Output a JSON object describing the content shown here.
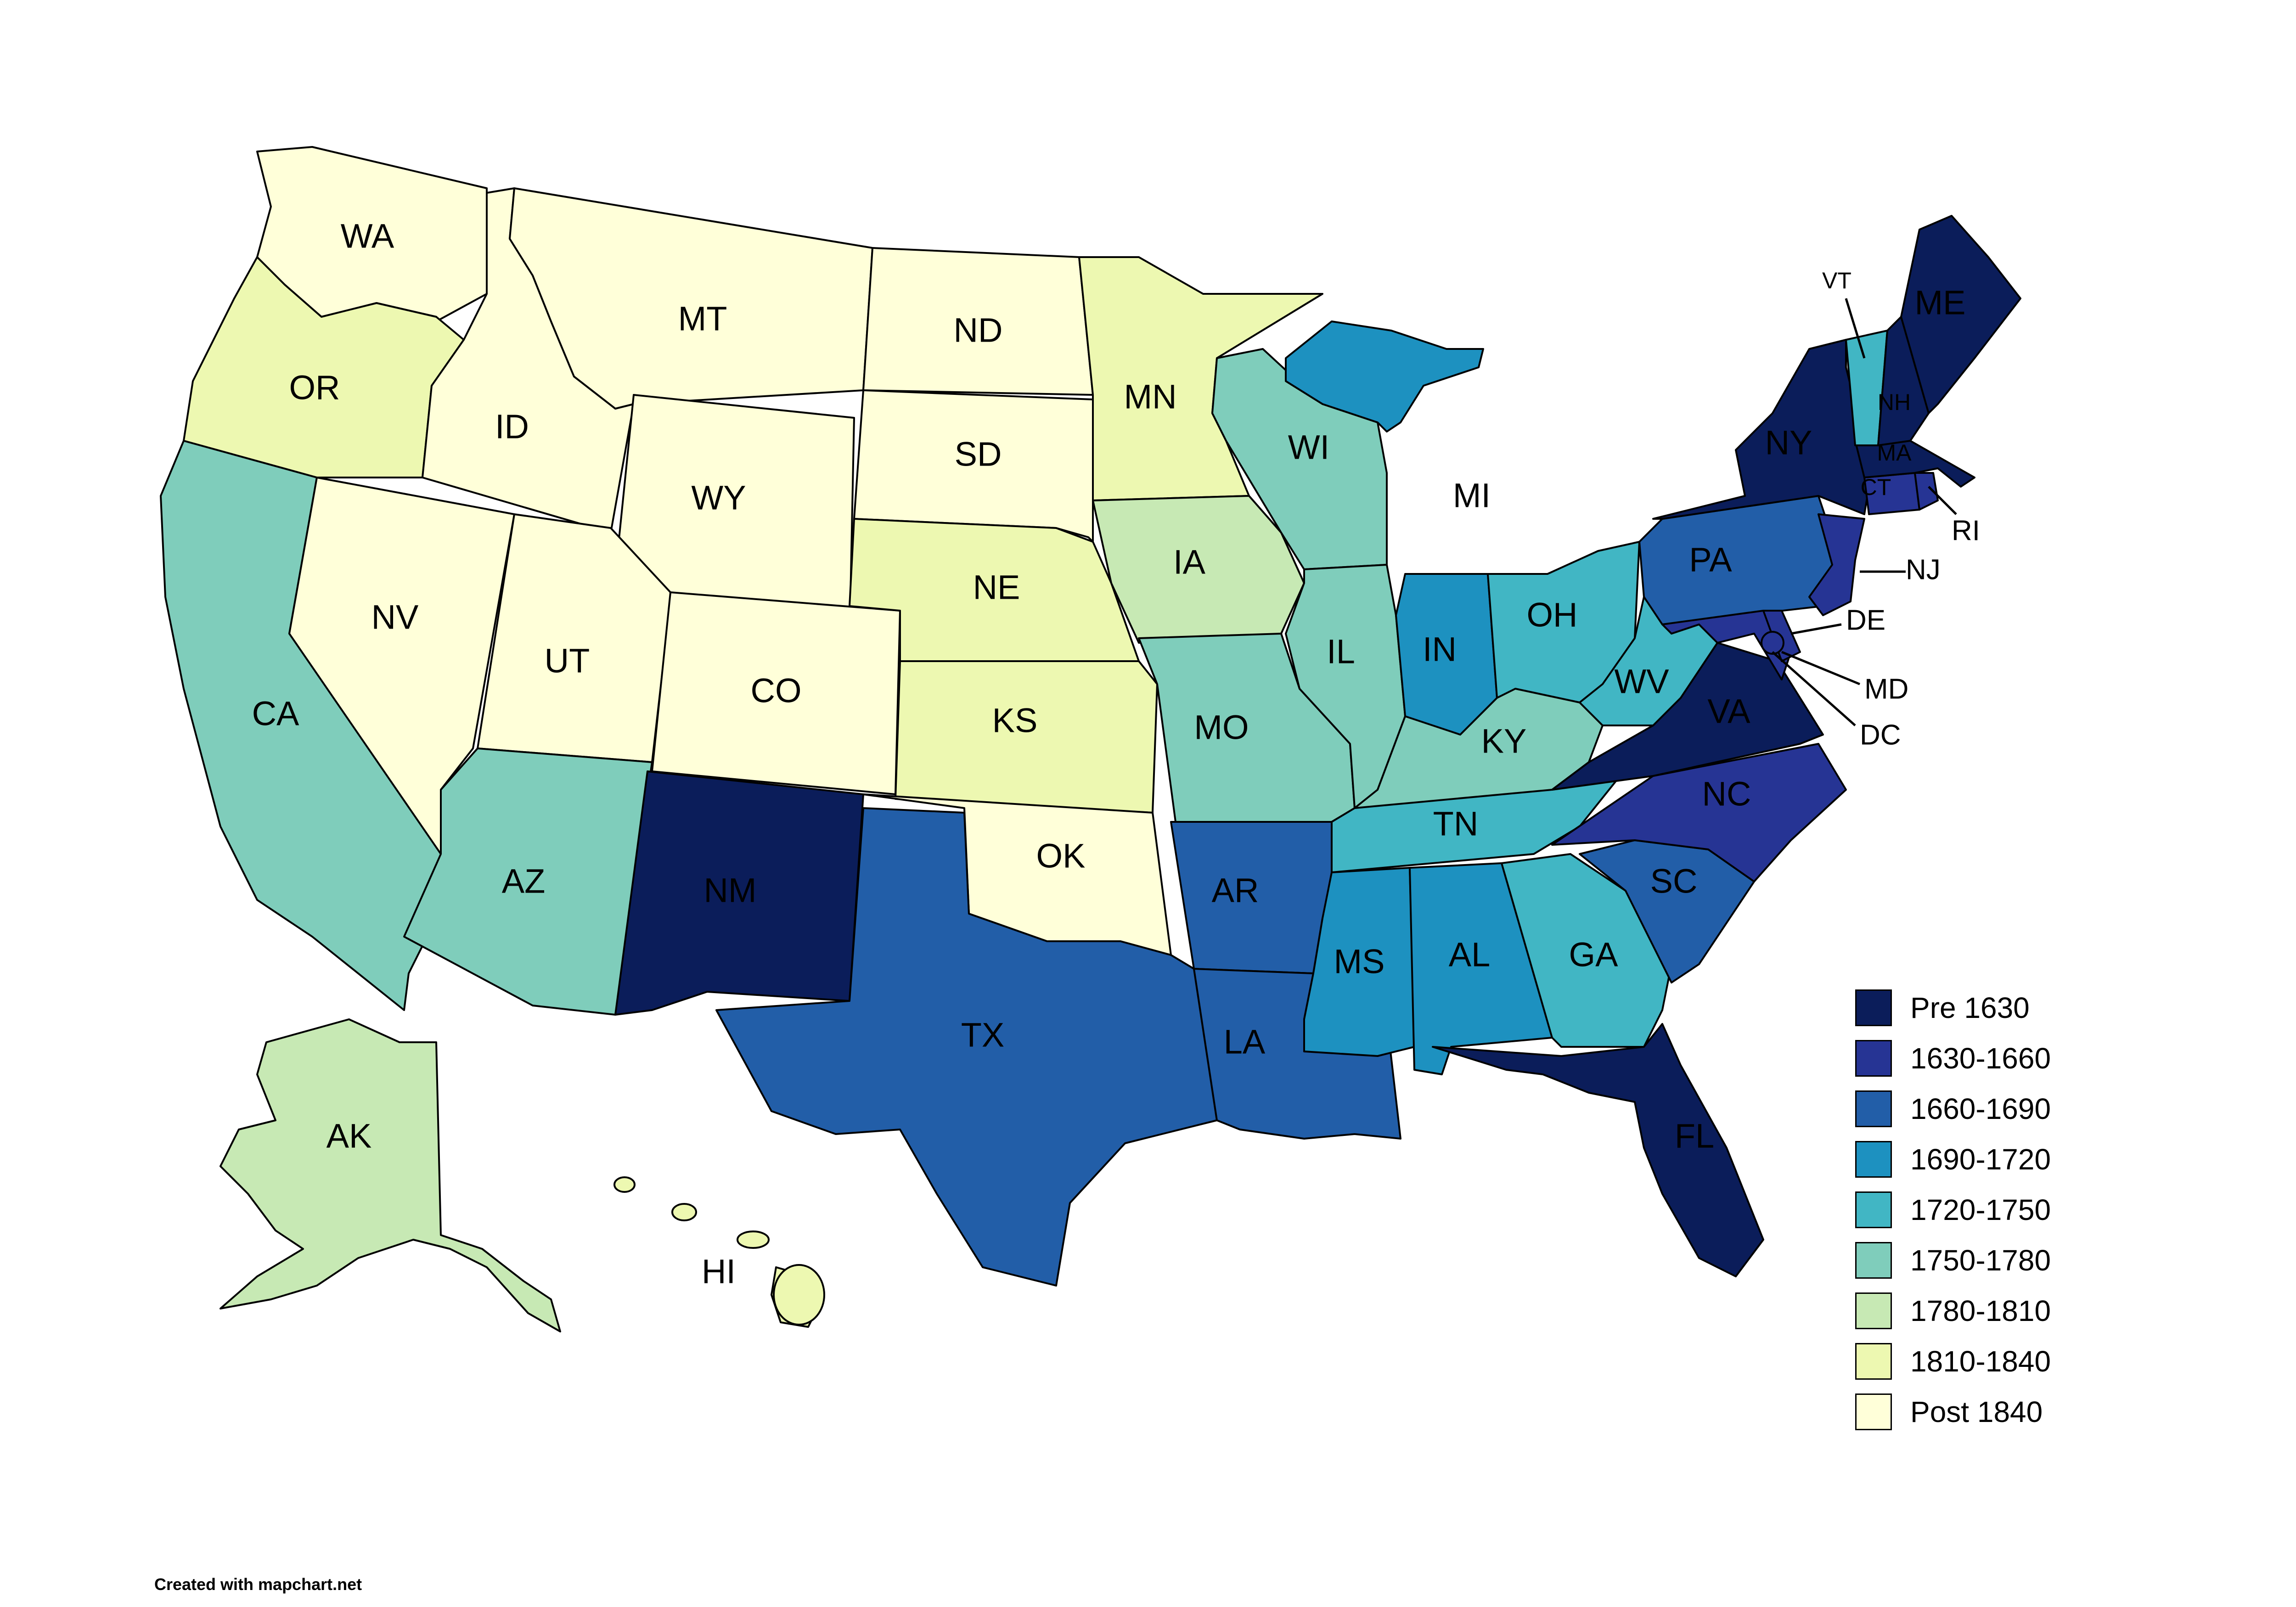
{
  "colors": {
    "pre_1630": "#0b1d5a",
    "c1630_1660": "#263494",
    "c1660_1690": "#225ea8",
    "c1690_1720": "#1d91c0",
    "c1720_1750": "#41b6c4",
    "c1750_1780": "#7fcdbb",
    "c1780_1810": "#c7e9b4",
    "c1810_1840": "#edf8b1",
    "post_1840": "#ffffd9"
  },
  "legend": [
    {
      "label": "Pre 1630",
      "color_key": "pre_1630"
    },
    {
      "label": "1630-1660",
      "color_key": "c1630_1660"
    },
    {
      "label": "1660-1690",
      "color_key": "c1660_1690"
    },
    {
      "label": "1690-1720",
      "color_key": "c1690_1720"
    },
    {
      "label": "1720-1750",
      "color_key": "c1720_1750"
    },
    {
      "label": "1750-1780",
      "color_key": "c1750_1780"
    },
    {
      "label": "1780-1810",
      "color_key": "c1780_1810"
    },
    {
      "label": "1810-1840",
      "color_key": "c1810_1840"
    },
    {
      "label": "Post 1840",
      "color_key": "post_1840"
    }
  ],
  "states": {
    "WA": "Post 1840",
    "OR": "1810-1840",
    "CA": "1750-1780",
    "ID": "Post 1840",
    "NV": "Post 1840",
    "MT": "Post 1840",
    "WY": "Post 1840",
    "UT": "Post 1840",
    "AZ": "1750-1780",
    "CO": "Post 1840",
    "NM": "Pre 1630",
    "ND": "Post 1840",
    "SD": "Post 1840",
    "NE": "1810-1840",
    "KS": "1810-1840",
    "OK": "Post 1840",
    "TX": "1660-1690",
    "MN": "1810-1840",
    "IA": "1780-1810",
    "MO": "1750-1780",
    "AR": "1660-1690",
    "LA": "1660-1690",
    "WI": "1750-1780",
    "IL": "1750-1780",
    "MI": "1690-1720",
    "IN": "1690-1720",
    "OH": "1720-1750",
    "KY": "1750-1780",
    "TN": "1720-1750",
    "MS": "1690-1720",
    "AL": "1690-1720",
    "GA": "1720-1750",
    "FL": "Pre 1630",
    "SC": "1660-1690",
    "NC": "1630-1660",
    "VA": "Pre 1630",
    "WV": "1720-1750",
    "PA": "1660-1690",
    "NY": "Pre 1630",
    "VT": "1720-1750",
    "NH": "Pre 1630",
    "ME": "Pre 1630",
    "MA": "Pre 1630",
    "CT": "1630-1660",
    "RI": "1630-1660",
    "NJ": "1630-1660",
    "DE": "1630-1660",
    "MD": "1630-1660",
    "DC": "1630-1660",
    "AK": "1780-1810",
    "HI": "1810-1840"
  },
  "credit": "Created with mapchart.net"
}
